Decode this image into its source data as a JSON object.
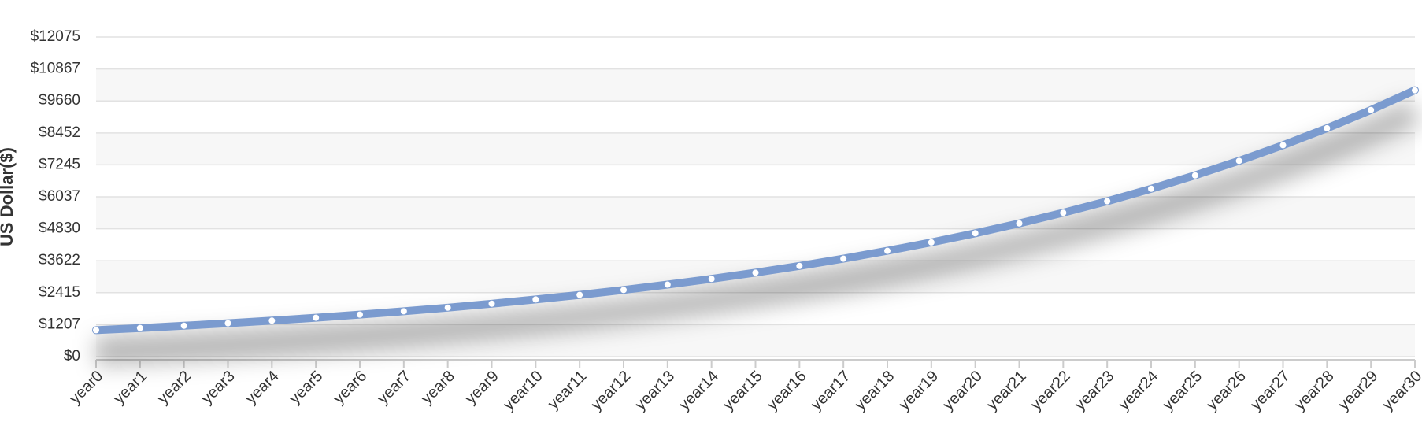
{
  "chart_data": {
    "type": "line",
    "y_label": "US Dollar($)",
    "categories": [
      "year0",
      "year1",
      "year2",
      "year3",
      "year4",
      "year5",
      "year6",
      "year7",
      "year8",
      "year9",
      "year10",
      "year11",
      "year12",
      "year13",
      "year14",
      "year15",
      "year16",
      "year17",
      "year18",
      "year19",
      "year20",
      "year21",
      "year22",
      "year23",
      "year24",
      "year25",
      "year26",
      "year27",
      "year28",
      "year29",
      "year30"
    ],
    "values": [
      1000,
      1080,
      1166,
      1260,
      1360,
      1469,
      1587,
      1714,
      1851,
      1999,
      2159,
      2332,
      2518,
      2720,
      2937,
      3172,
      3426,
      3700,
      3996,
      4316,
      4661,
      5034,
      5437,
      5871,
      6341,
      6848,
      7396,
      7988,
      8627,
      9317,
      10063
    ],
    "color": "#7b9bcf",
    "ylim": [
      0,
      12075
    ],
    "yticks": [
      {
        "value": 0,
        "label": "$0"
      },
      {
        "value": 1207,
        "label": "$1207"
      },
      {
        "value": 2415,
        "label": "$2415"
      },
      {
        "value": 3622,
        "label": "$3622"
      },
      {
        "value": 4830,
        "label": "$4830"
      },
      {
        "value": 6037,
        "label": "$6037"
      },
      {
        "value": 7245,
        "label": "$7245"
      },
      {
        "value": 8452,
        "label": "$8452"
      },
      {
        "value": 9660,
        "label": "$9660"
      },
      {
        "value": 10867,
        "label": "$10867"
      },
      {
        "value": 12075,
        "label": "$12075"
      }
    ],
    "grid": true,
    "alternate_bands": true
  }
}
